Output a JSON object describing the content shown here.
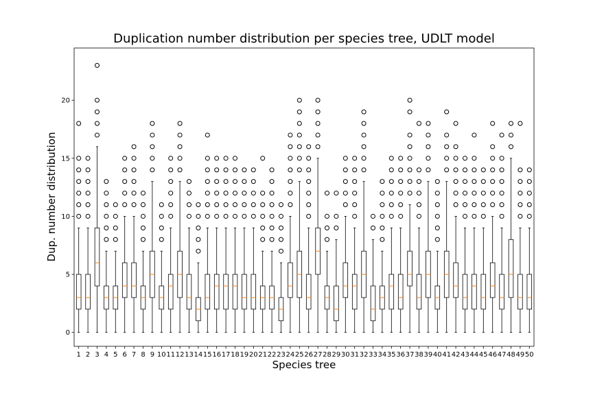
{
  "chart_data": {
    "type": "box",
    "title": "Duplication number distribution per species tree, UDLT model",
    "xlabel": "Species tree",
    "ylabel": "Dup. number distribution",
    "ylim": [
      -1.2,
      24.5
    ],
    "yticks": [
      0,
      5,
      10,
      15,
      20
    ],
    "grid": false,
    "legend": "none",
    "colors": {
      "box": "#000000",
      "median": "#ff7f0e",
      "outlier": "#000000",
      "frame": "#000000"
    },
    "categories": [
      "1",
      "2",
      "3",
      "4",
      "5",
      "6",
      "7",
      "8",
      "9",
      "10",
      "11",
      "12",
      "13",
      "14",
      "15",
      "16",
      "17",
      "18",
      "19",
      "20",
      "21",
      "22",
      "23",
      "24",
      "25",
      "26",
      "27",
      "28",
      "29",
      "30",
      "31",
      "32",
      "33",
      "34",
      "35",
      "36",
      "37",
      "38",
      "39",
      "40",
      "41",
      "42",
      "43",
      "44",
      "45",
      "46",
      "47",
      "48",
      "49",
      "50"
    ],
    "boxes": [
      {
        "q1": 2,
        "median": 3,
        "q3": 5,
        "whislo": 0,
        "whishi": 9,
        "fliers": [
          10,
          11,
          12,
          13,
          14,
          15,
          18
        ]
      },
      {
        "q1": 2,
        "median": 3,
        "q3": 5,
        "whislo": 0,
        "whishi": 9,
        "fliers": [
          10,
          11,
          12,
          13,
          14,
          15
        ]
      },
      {
        "q1": 4,
        "median": 6,
        "q3": 9,
        "whislo": 0,
        "whishi": 16,
        "fliers": [
          17,
          18,
          19,
          20,
          23
        ]
      },
      {
        "q1": 2,
        "median": 3,
        "q3": 4,
        "whislo": 0,
        "whishi": 7,
        "fliers": [
          8,
          9,
          10,
          11,
          12,
          13
        ]
      },
      {
        "q1": 2,
        "median": 3,
        "q3": 4,
        "whislo": 0,
        "whishi": 7,
        "fliers": [
          8,
          9,
          10,
          11
        ]
      },
      {
        "q1": 3,
        "median": 4,
        "q3": 6,
        "whislo": 0,
        "whishi": 10,
        "fliers": [
          11,
          12,
          13,
          14,
          15
        ]
      },
      {
        "q1": 3,
        "median": 4,
        "q3": 6,
        "whislo": 0,
        "whishi": 10,
        "fliers": [
          11,
          12,
          13,
          14,
          15,
          16
        ]
      },
      {
        "q1": 2,
        "median": 3,
        "q3": 4,
        "whislo": 0,
        "whishi": 7,
        "fliers": [
          8,
          9,
          10,
          11,
          12
        ]
      },
      {
        "q1": 3,
        "median": 5,
        "q3": 7,
        "whislo": 0,
        "whishi": 13,
        "fliers": [
          14,
          15,
          16,
          17,
          18
        ]
      },
      {
        "q1": 2,
        "median": 3,
        "q3": 4,
        "whislo": 0,
        "whishi": 7,
        "fliers": [
          8,
          9,
          10,
          11
        ]
      },
      {
        "q1": 2,
        "median": 4,
        "q3": 5,
        "whislo": 0,
        "whishi": 9,
        "fliers": [
          10,
          11,
          12,
          13,
          14,
          15
        ]
      },
      {
        "q1": 3,
        "median": 5,
        "q3": 7,
        "whislo": 0,
        "whishi": 13,
        "fliers": [
          14,
          15,
          16,
          17,
          18
        ]
      },
      {
        "q1": 2,
        "median": 3,
        "q3": 5,
        "whislo": 0,
        "whishi": 9,
        "fliers": [
          10,
          11,
          12,
          13
        ]
      },
      {
        "q1": 1,
        "median": 2,
        "q3": 3,
        "whislo": 0,
        "whishi": 6,
        "fliers": [
          7,
          8,
          9,
          10,
          11
        ]
      },
      {
        "q1": 2,
        "median": 3,
        "q3": 5,
        "whislo": 0,
        "whishi": 9,
        "fliers": [
          10,
          11,
          12,
          13,
          14,
          15,
          17
        ]
      },
      {
        "q1": 2,
        "median": 4,
        "q3": 5,
        "whislo": 0,
        "whishi": 9,
        "fliers": [
          10,
          11,
          12,
          13,
          14,
          15
        ]
      },
      {
        "q1": 2,
        "median": 4,
        "q3": 5,
        "whislo": 0,
        "whishi": 9,
        "fliers": [
          10,
          11,
          12,
          13,
          14,
          15
        ]
      },
      {
        "q1": 2,
        "median": 4,
        "q3": 5,
        "whislo": 0,
        "whishi": 9,
        "fliers": [
          10,
          11,
          12,
          13,
          14,
          15
        ]
      },
      {
        "q1": 2,
        "median": 3,
        "q3": 5,
        "whislo": 0,
        "whishi": 9,
        "fliers": [
          10,
          11,
          12,
          13,
          14
        ]
      },
      {
        "q1": 2,
        "median": 3,
        "q3": 5,
        "whislo": 0,
        "whishi": 9,
        "fliers": [
          10,
          11,
          12,
          13,
          14
        ]
      },
      {
        "q1": 2,
        "median": 3,
        "q3": 4,
        "whislo": 0,
        "whishi": 7,
        "fliers": [
          8,
          9,
          10,
          11,
          12,
          15
        ]
      },
      {
        "q1": 2,
        "median": 3,
        "q3": 4,
        "whislo": 0,
        "whishi": 7,
        "fliers": [
          8,
          9,
          10,
          11,
          12,
          13,
          14
        ]
      },
      {
        "q1": 1,
        "median": 2,
        "q3": 3,
        "whislo": 0,
        "whishi": 6,
        "fliers": [
          7,
          8,
          9,
          10,
          11
        ]
      },
      {
        "q1": 3,
        "median": 4,
        "q3": 6,
        "whislo": 0,
        "whishi": 10,
        "fliers": [
          11,
          12,
          13,
          14,
          15,
          16,
          17
        ]
      },
      {
        "q1": 3,
        "median": 5,
        "q3": 7,
        "whislo": 0,
        "whishi": 13,
        "fliers": [
          14,
          15,
          16,
          17,
          18,
          19,
          20
        ]
      },
      {
        "q1": 2,
        "median": 3,
        "q3": 5,
        "whislo": 0,
        "whishi": 9,
        "fliers": [
          10,
          11,
          12,
          13,
          14,
          15,
          16
        ]
      },
      {
        "q1": 5,
        "median": 7,
        "q3": 9,
        "whislo": 0,
        "whishi": 15,
        "fliers": [
          16,
          17,
          18,
          19,
          20
        ]
      },
      {
        "q1": 2,
        "median": 3,
        "q3": 4,
        "whislo": 0,
        "whishi": 7,
        "fliers": [
          8,
          9,
          10,
          12
        ]
      },
      {
        "q1": 1,
        "median": 2,
        "q3": 4,
        "whislo": 0,
        "whishi": 8,
        "fliers": [
          9,
          10,
          12
        ]
      },
      {
        "q1": 3,
        "median": 4,
        "q3": 6,
        "whislo": 0,
        "whishi": 10,
        "fliers": [
          11,
          12,
          13,
          14,
          15
        ]
      },
      {
        "q1": 2,
        "median": 4,
        "q3": 5,
        "whislo": 0,
        "whishi": 9,
        "fliers": [
          10,
          11,
          12,
          13,
          14,
          15
        ]
      },
      {
        "q1": 3,
        "median": 5,
        "q3": 7,
        "whislo": 0,
        "whishi": 13,
        "fliers": [
          14,
          15,
          16,
          17,
          18,
          19
        ]
      },
      {
        "q1": 1,
        "median": 2,
        "q3": 4,
        "whislo": 0,
        "whishi": 8,
        "fliers": [
          9,
          10
        ]
      },
      {
        "q1": 2,
        "median": 3,
        "q3": 4,
        "whislo": 0,
        "whishi": 7,
        "fliers": [
          8,
          9,
          10,
          11,
          12,
          13
        ]
      },
      {
        "q1": 2,
        "median": 4,
        "q3": 5,
        "whislo": 0,
        "whishi": 9,
        "fliers": [
          10,
          11,
          12,
          13,
          14,
          15
        ]
      },
      {
        "q1": 2,
        "median": 3,
        "q3": 5,
        "whislo": 0,
        "whishi": 9,
        "fliers": [
          10,
          11,
          12,
          13,
          14,
          15
        ]
      },
      {
        "q1": 4,
        "median": 5,
        "q3": 7,
        "whislo": 0,
        "whishi": 11,
        "fliers": [
          12,
          13,
          14,
          15,
          16,
          17,
          19,
          20
        ]
      },
      {
        "q1": 2,
        "median": 3,
        "q3": 5,
        "whislo": 0,
        "whishi": 9,
        "fliers": [
          10,
          11,
          12,
          13,
          14,
          18
        ]
      },
      {
        "q1": 3,
        "median": 5,
        "q3": 7,
        "whislo": 0,
        "whishi": 13,
        "fliers": [
          14,
          15,
          16,
          17,
          18
        ]
      },
      {
        "q1": 2,
        "median": 3,
        "q3": 4,
        "whislo": 0,
        "whishi": 7,
        "fliers": [
          8,
          9,
          10,
          11,
          12,
          13
        ]
      },
      {
        "q1": 3,
        "median": 5,
        "q3": 7,
        "whislo": 0,
        "whishi": 13,
        "fliers": [
          14,
          15,
          16,
          17,
          19
        ]
      },
      {
        "q1": 3,
        "median": 4,
        "q3": 6,
        "whislo": 0,
        "whishi": 10,
        "fliers": [
          11,
          12,
          13,
          14,
          15,
          16,
          18
        ]
      },
      {
        "q1": 2,
        "median": 3,
        "q3": 5,
        "whislo": 0,
        "whishi": 9,
        "fliers": [
          10,
          11,
          12,
          13,
          14,
          15
        ]
      },
      {
        "q1": 2,
        "median": 4,
        "q3": 5,
        "whislo": 0,
        "whishi": 9,
        "fliers": [
          10,
          11,
          12,
          13,
          14,
          15,
          17
        ]
      },
      {
        "q1": 2,
        "median": 3,
        "q3": 5,
        "whislo": 0,
        "whishi": 9,
        "fliers": [
          10,
          11,
          12,
          13,
          14
        ]
      },
      {
        "q1": 3,
        "median": 4,
        "q3": 6,
        "whislo": 0,
        "whishi": 10,
        "fliers": [
          11,
          12,
          13,
          14,
          15,
          16,
          18
        ]
      },
      {
        "q1": 2,
        "median": 3,
        "q3": 5,
        "whislo": 0,
        "whishi": 9,
        "fliers": [
          10,
          11,
          12,
          13,
          14,
          15,
          17
        ]
      },
      {
        "q1": 3,
        "median": 5,
        "q3": 8,
        "whislo": 0,
        "whishi": 15,
        "fliers": [
          16,
          17,
          18
        ]
      },
      {
        "q1": 2,
        "median": 3,
        "q3": 5,
        "whislo": 0,
        "whishi": 9,
        "fliers": [
          10,
          11,
          12,
          13,
          14,
          18
        ]
      },
      {
        "q1": 2,
        "median": 3,
        "q3": 5,
        "whislo": 0,
        "whishi": 9,
        "fliers": [
          10,
          11,
          12,
          13,
          14
        ]
      }
    ]
  }
}
